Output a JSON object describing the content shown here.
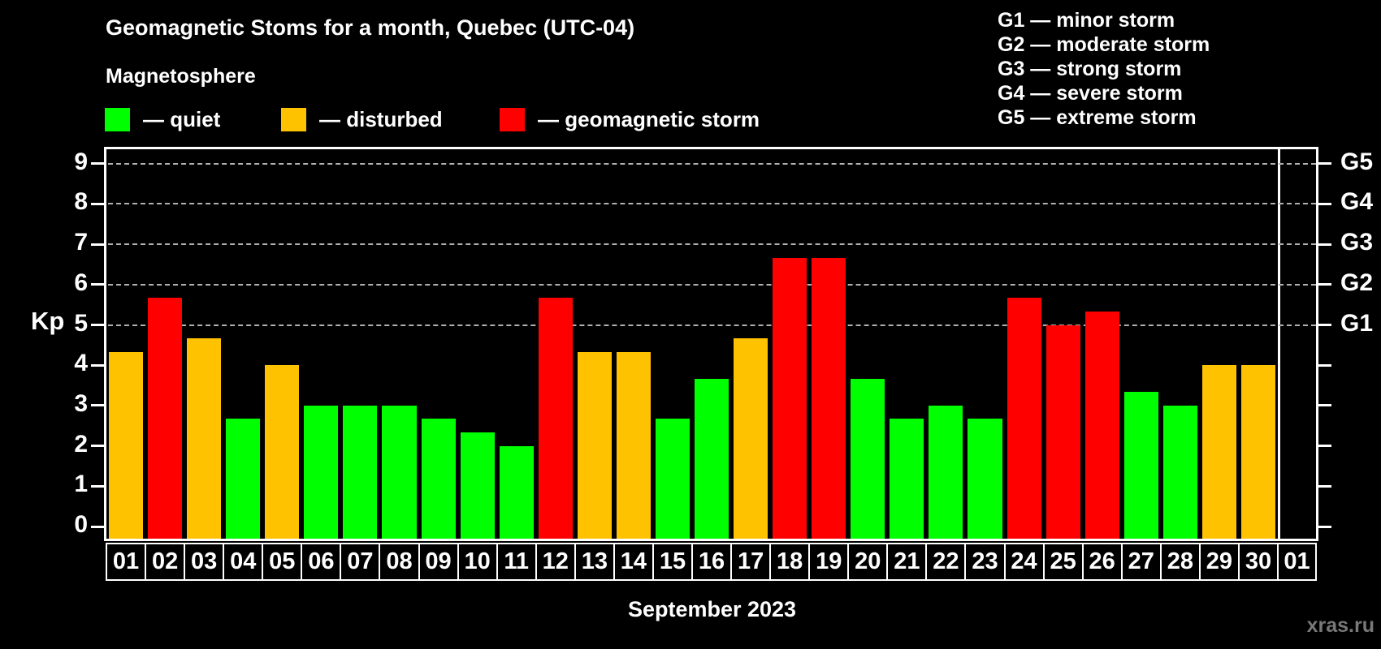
{
  "title": "Geomagnetic Stoms for a month, Quebec (UTC-04)",
  "subtitle": "Magnetosphere",
  "watermark": "xras.ru",
  "legend": {
    "items": [
      {
        "key": "quiet",
        "label": "— quiet",
        "color": "#00ff00"
      },
      {
        "key": "disturbed",
        "label": "— disturbed",
        "color": "#ffc200"
      },
      {
        "key": "storm",
        "label": "— geomagnetic storm",
        "color": "#ff0000"
      }
    ]
  },
  "storm_scale": [
    "G1 — minor storm",
    "G2 — moderate storm",
    "G3 — strong storm",
    "G4 — severe storm",
    "G5 — extreme storm"
  ],
  "chart_data": {
    "type": "bar",
    "title": "Geomagnetic Stoms for a month, Quebec (UTC-04)",
    "xlabel": "September 2023",
    "ylabel": "Kp",
    "ylim": [
      0,
      9
    ],
    "y_ticks": [
      0,
      1,
      2,
      3,
      4,
      5,
      6,
      7,
      8,
      9
    ],
    "gridlines_at": [
      5,
      6,
      7,
      8,
      9
    ],
    "grid": "dashed horizontal at storm levels only",
    "legend_position": "top",
    "right_axis": [
      {
        "kp": 9,
        "label": "G5"
      },
      {
        "kp": 8,
        "label": "G4"
      },
      {
        "kp": 7,
        "label": "G3"
      },
      {
        "kp": 6,
        "label": "G2"
      },
      {
        "kp": 5,
        "label": "G1"
      }
    ],
    "status_colors": {
      "quiet": "#00ff00",
      "disturbed": "#ffc200",
      "storm": "#ff0000"
    },
    "categories": [
      "01",
      "02",
      "03",
      "04",
      "05",
      "06",
      "07",
      "08",
      "09",
      "10",
      "11",
      "12",
      "13",
      "14",
      "15",
      "16",
      "17",
      "18",
      "19",
      "20",
      "21",
      "22",
      "23",
      "24",
      "25",
      "26",
      "27",
      "28",
      "29",
      "30",
      "01"
    ],
    "values": [
      4.33,
      5.67,
      4.67,
      2.67,
      4.0,
      3.0,
      3.0,
      3.0,
      2.67,
      2.33,
      2.0,
      5.67,
      4.33,
      4.33,
      2.67,
      3.67,
      4.67,
      6.67,
      6.67,
      3.67,
      2.67,
      3.0,
      2.67,
      5.67,
      5.0,
      5.33,
      3.33,
      3.0,
      4.0,
      4.0,
      null
    ],
    "statuses": [
      "disturbed",
      "storm",
      "disturbed",
      "quiet",
      "disturbed",
      "quiet",
      "quiet",
      "quiet",
      "quiet",
      "quiet",
      "quiet",
      "storm",
      "disturbed",
      "disturbed",
      "quiet",
      "quiet",
      "disturbed",
      "storm",
      "storm",
      "quiet",
      "quiet",
      "quiet",
      "quiet",
      "storm",
      "storm",
      "storm",
      "quiet",
      "quiet",
      "disturbed",
      "disturbed",
      null
    ]
  }
}
